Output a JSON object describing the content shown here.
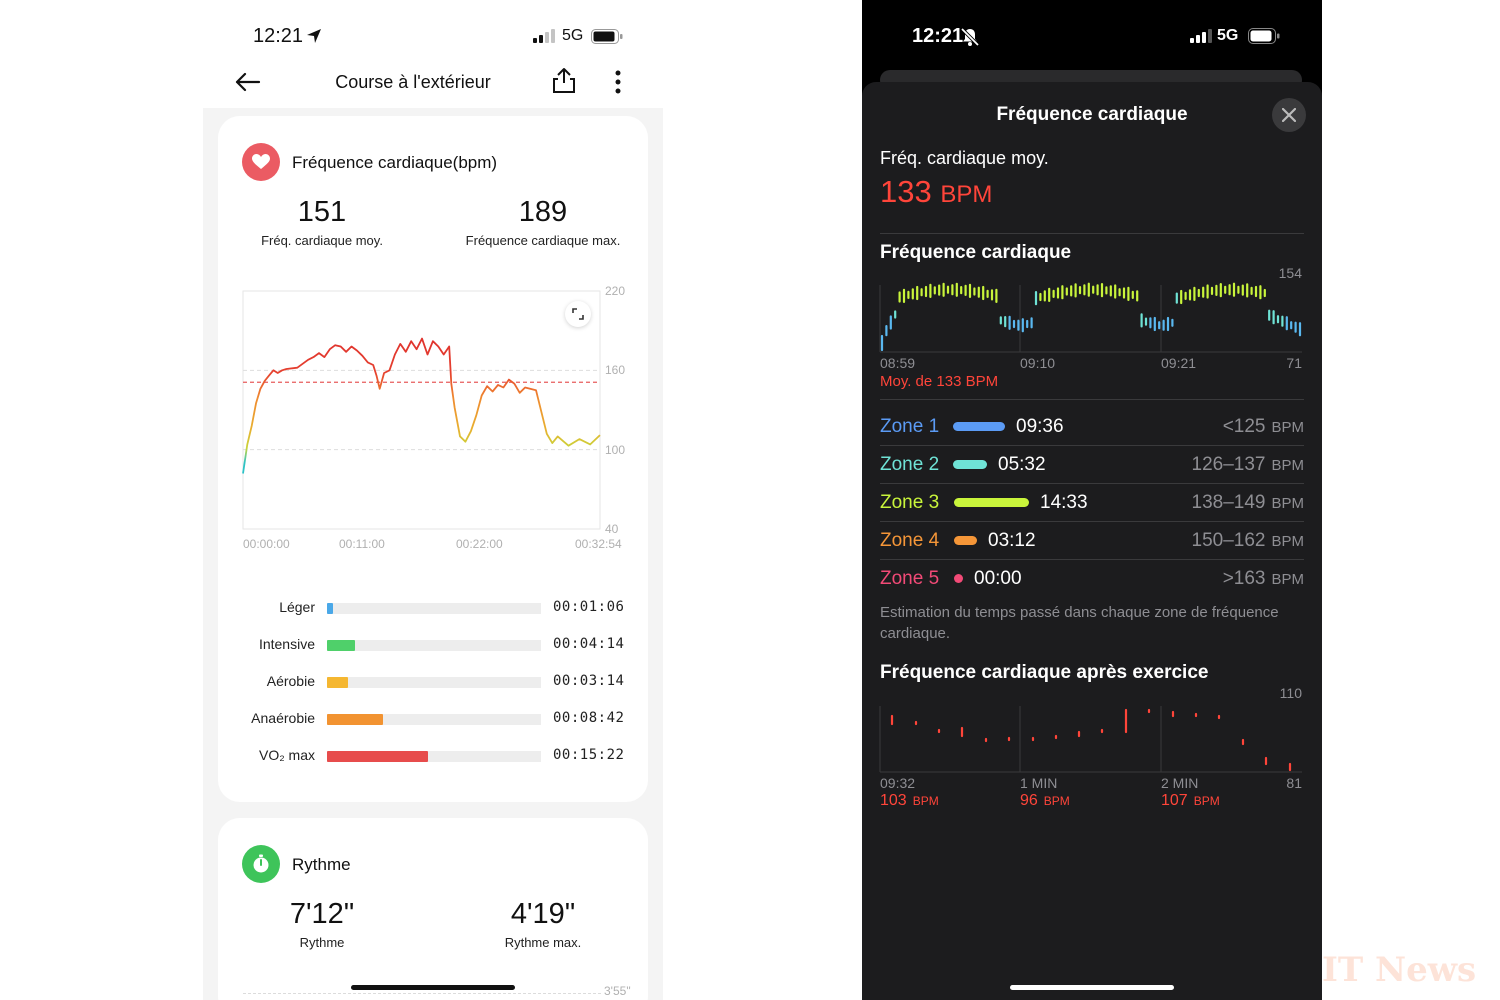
{
  "left_phone": {
    "status": {
      "time": "12:21",
      "network": "5G"
    },
    "nav": {
      "title": "Course à l'extérieur"
    },
    "heart_card": {
      "title": "Fréquence cardiaque(bpm)",
      "avg_value": "151",
      "avg_label": "Fréq. cardiaque moy.",
      "max_value": "189",
      "max_label": "Fréquence cardiaque max.",
      "chart_data": {
        "type": "line",
        "y_ticks": [
          "220",
          "160",
          "100",
          "40"
        ],
        "x_ticks": [
          "00:00:00",
          "00:11:00",
          "00:22:00",
          "00:32:54"
        ],
        "ylim": [
          40,
          220
        ],
        "avg_line": 151,
        "x_minutes": [
          0,
          0.4,
          0.8,
          1.2,
          1.6,
          2.0,
          2.4,
          2.8,
          3.2,
          3.6,
          4.0,
          5.0,
          6.0,
          6.5,
          7.0,
          7.5,
          8.0,
          8.5,
          9.0,
          9.5,
          10.0,
          10.5,
          11.0,
          11.5,
          12.0,
          12.3,
          12.6,
          13.0,
          13.5,
          14.0,
          14.5,
          15.0,
          15.5,
          16.0,
          16.5,
          17.0,
          17.5,
          18.0,
          18.5,
          19.0,
          19.2,
          19.5,
          20.0,
          20.5,
          21.0,
          21.5,
          22.0,
          22.5,
          23.0,
          23.5,
          24.0,
          24.5,
          25.0,
          25.5,
          26.0,
          27.0,
          28.0,
          28.5,
          29.0,
          30.0,
          31.0,
          32.0,
          32.9
        ],
        "y_bpm": [
          82,
          104,
          118,
          135,
          146,
          152,
          156,
          160,
          158,
          160,
          161,
          162,
          168,
          170,
          173,
          170,
          176,
          179,
          178,
          174,
          178,
          175,
          171,
          166,
          164,
          156,
          146,
          158,
          160,
          172,
          180,
          174,
          182,
          176,
          184,
          172,
          182,
          178,
          172,
          178,
          150,
          132,
          110,
          106,
          114,
          126,
          141,
          148,
          144,
          149,
          147,
          153,
          150,
          143,
          147,
          145,
          112,
          105,
          110,
          103,
          108,
          104,
          111
        ]
      }
    },
    "zones": [
      {
        "label": "Léger",
        "time": "00:01:06",
        "fraction": 0.03,
        "color": "#4aa8e8"
      },
      {
        "label": "Intensive",
        "time": "00:04:14",
        "fraction": 0.13,
        "color": "#4fd06a"
      },
      {
        "label": "Aérobie",
        "time": "00:03:14",
        "fraction": 0.1,
        "color": "#f5b731"
      },
      {
        "label": "Anaérobie",
        "time": "00:08:42",
        "fraction": 0.26,
        "color": "#f29331"
      },
      {
        "label": "VO₂ max",
        "time": "00:15:22",
        "fraction": 0.47,
        "color": "#e74c4c"
      }
    ],
    "pace_card": {
      "title": "Rythme",
      "avg_value": "7'12\"",
      "avg_label": "Rythme",
      "max_value": "4'19\"",
      "max_label": "Rythme max.",
      "next_tick": "3'55\""
    }
  },
  "right_phone": {
    "status": {
      "time": "12:21",
      "network": "5G"
    },
    "sheet_title": "Fréquence cardiaque",
    "avg_label": "Fréq. cardiaque moy.",
    "avg_value": "133",
    "avg_unit": "BPM",
    "hr_section": {
      "title": "Fréquence cardiaque",
      "ymax": "154",
      "ymin": "71",
      "x_ticks": [
        "08:59",
        "09:10",
        "09:21"
      ],
      "avg_note": "Moy. de 133 BPM"
    },
    "zones": [
      {
        "name": "Zone 1",
        "time": "09:36",
        "range": "<125",
        "unit": "BPM",
        "color": "#5b9bf5"
      },
      {
        "name": "Zone 2",
        "time": "05:32",
        "range": "126–137",
        "unit": "BPM",
        "color": "#6fe3d6"
      },
      {
        "name": "Zone 3",
        "time": "14:33",
        "range": "138–149",
        "unit": "BPM",
        "color": "#c9f53b"
      },
      {
        "name": "Zone 4",
        "time": "03:12",
        "range": "150–162",
        "unit": "BPM",
        "color": "#f59638"
      },
      {
        "name": "Zone 5",
        "time": "00:00",
        "range": ">163",
        "unit": "BPM",
        "color": "#f24a77"
      }
    ],
    "zone_note": "Estimation du temps passé dans chaque zone de fréquence cardiaque.",
    "recovery": {
      "title": "Fréquence cardiaque après exercice",
      "ymax": "110",
      "ymin": "81",
      "x_ticks": [
        "09:32",
        "1 MIN",
        "2 MIN"
      ],
      "points": [
        {
          "value": "103",
          "unit": "BPM"
        },
        {
          "value": "96",
          "unit": "BPM"
        },
        {
          "value": "107",
          "unit": "BPM"
        }
      ]
    }
  },
  "watermark": "IT News"
}
